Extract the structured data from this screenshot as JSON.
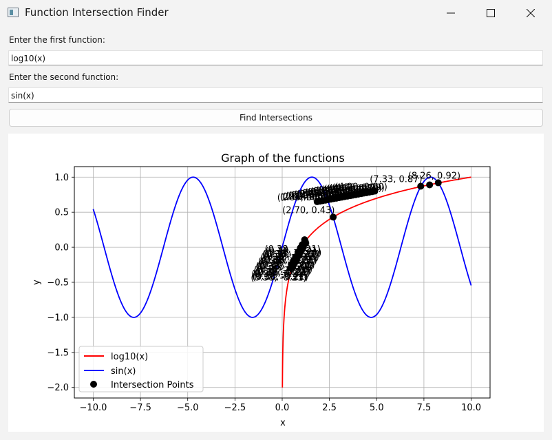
{
  "window": {
    "title": "Function Intersection Finder"
  },
  "form": {
    "first_label": "Enter the first function:",
    "first_value": "log10(x)",
    "second_label": "Enter the second function:",
    "second_value": "sin(x)",
    "button_label": "Find Intersections"
  },
  "icons": {
    "app": "app-window-icon",
    "minimize": "minimize-icon",
    "maximize": "maximize-icon",
    "close": "close-icon"
  },
  "colors": {
    "series1": "#ff0000",
    "series2": "#0000ff",
    "points": "#000000"
  },
  "chart_data": {
    "type": "line",
    "title": "Graph of the functions",
    "xlabel": "x",
    "ylabel": "y",
    "xlim": [
      -11,
      11
    ],
    "ylim": [
      -2.15,
      1.15
    ],
    "xticks": [
      "-10.0",
      "-7.5",
      "-5.0",
      "-2.5",
      "0.0",
      "2.5",
      "5.0",
      "7.5",
      "10.0"
    ],
    "yticks": [
      "-2.0",
      "-1.5",
      "-1.0",
      "-0.5",
      "0.0",
      "0.5",
      "1.0"
    ],
    "grid": true,
    "legend_position": "lower-left",
    "series": [
      {
        "name": "log10(x)",
        "function": "log10(x)",
        "domain": [
          0.01,
          10
        ],
        "color": "#ff0000"
      },
      {
        "name": "sin(x)",
        "function": "sin(x)",
        "domain": [
          -10,
          10
        ],
        "color": "#0000ff"
      }
    ],
    "intersection_legend": "Intersection Points",
    "intersections": [
      {
        "x": 2.7,
        "y": 0.43,
        "label": "(2.70, 0.43)"
      },
      {
        "x": 7.33,
        "y": 0.87,
        "label": "(7.33, 0.87)"
      },
      {
        "x": 7.8,
        "y": 0.89,
        "label": ""
      },
      {
        "x": 8.26,
        "y": 0.92,
        "label": "(8.26, 0.92)"
      }
    ],
    "dense_clusters": [
      {
        "x_from": 0.45,
        "x_to": 1.25,
        "y_from": -0.3,
        "y_to": 0.1,
        "label": "(0.38, -0.21)"
      },
      {
        "x_from": 1.85,
        "x_to": 4.9,
        "y_from": 0.65,
        "y_to": 0.8
      }
    ]
  }
}
